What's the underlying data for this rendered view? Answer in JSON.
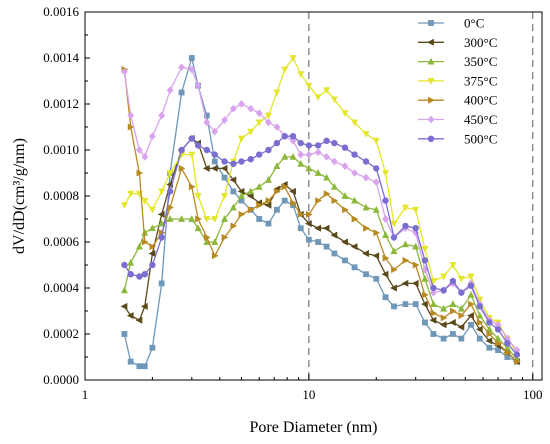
{
  "chart_data": {
    "type": "line",
    "xlabel": "Pore Diameter (nm)",
    "ylabel": "dV/dD(cm³/g/nm)",
    "xscale": "log",
    "xlim": [
      1,
      110
    ],
    "ylim": [
      0,
      0.0016
    ],
    "xticks": [
      1,
      10,
      100
    ],
    "xtick_labels": [
      "1",
      "10",
      "100"
    ],
    "yticks": [
      0,
      0.0002,
      0.0004,
      0.0006,
      0.0008,
      0.001,
      0.0012,
      0.0014,
      0.0016
    ],
    "ytick_labels": [
      "0.0000",
      "0.0002",
      "0.0004",
      "0.0006",
      "0.0008",
      "0.0010",
      "0.0012",
      "0.0014",
      "0.0016"
    ],
    "reference_lines_x": [
      10,
      100
    ],
    "legend_position": "top-right",
    "series": [
      {
        "name": "0°C",
        "color": "#6f97b8",
        "marker": "square",
        "x": [
          1.5,
          1.6,
          1.75,
          1.85,
          2.0,
          2.2,
          2.4,
          2.7,
          3.0,
          3.2,
          3.5,
          3.8,
          4.2,
          4.6,
          5.0,
          5.5,
          6.0,
          6.6,
          7.2,
          7.8,
          8.5,
          9.2,
          10,
          11,
          12,
          13,
          14.5,
          16,
          18,
          20,
          22,
          24,
          27,
          30,
          33,
          36,
          40,
          44,
          48,
          53,
          58,
          64,
          70,
          77,
          85
        ],
        "y": [
          0.0002,
          8e-05,
          6e-05,
          6e-05,
          0.00014,
          0.00042,
          0.0009,
          0.00125,
          0.0014,
          0.00128,
          0.00115,
          0.00095,
          0.00088,
          0.00082,
          0.00078,
          0.00074,
          0.0007,
          0.00068,
          0.00074,
          0.00078,
          0.00076,
          0.00066,
          0.00061,
          0.0006,
          0.00058,
          0.00055,
          0.00052,
          0.00049,
          0.00046,
          0.00044,
          0.00036,
          0.00032,
          0.00033,
          0.00033,
          0.00025,
          0.0002,
          0.00018,
          0.0002,
          0.00018,
          0.00024,
          0.00018,
          0.00014,
          0.00013,
          0.0001,
          8e-05
        ]
      },
      {
        "name": "300°C",
        "color": "#5a4a1a",
        "marker": "triangle-left",
        "x": [
          1.5,
          1.6,
          1.75,
          1.85,
          2.0,
          2.2,
          2.4,
          2.7,
          3.0,
          3.2,
          3.5,
          3.8,
          4.2,
          4.6,
          5.0,
          5.5,
          6.0,
          6.6,
          7.2,
          7.8,
          8.5,
          9.2,
          10,
          11,
          12,
          13,
          14.5,
          16,
          18,
          20,
          22,
          24,
          27,
          30,
          33,
          36,
          40,
          44,
          48,
          53,
          58,
          64,
          70,
          77,
          85
        ],
        "y": [
          0.00032,
          0.00028,
          0.00026,
          0.00032,
          0.00055,
          0.00072,
          0.00085,
          0.001,
          0.00105,
          0.00103,
          0.00092,
          0.00092,
          0.00092,
          0.00087,
          0.00082,
          0.0008,
          0.00077,
          0.00076,
          0.00083,
          0.00085,
          0.00082,
          0.00072,
          0.00068,
          0.00066,
          0.00066,
          0.00063,
          0.0006,
          0.00058,
          0.00055,
          0.00054,
          0.00046,
          0.0004,
          0.00042,
          0.00042,
          0.00033,
          0.00026,
          0.00024,
          0.00025,
          0.00023,
          0.00028,
          0.00022,
          0.00017,
          0.00015,
          0.00012,
          8e-05
        ]
      },
      {
        "name": "350°C",
        "color": "#8bb83a",
        "marker": "triangle-up",
        "x": [
          1.5,
          1.6,
          1.75,
          1.85,
          2.0,
          2.2,
          2.4,
          2.7,
          3.0,
          3.2,
          3.5,
          3.8,
          4.2,
          4.6,
          5.0,
          5.5,
          6.0,
          6.6,
          7.2,
          7.8,
          8.5,
          9.2,
          10,
          11,
          12,
          13,
          14.5,
          16,
          18,
          20,
          22,
          24,
          27,
          30,
          33,
          36,
          40,
          44,
          48,
          53,
          58,
          64,
          70,
          77,
          85
        ],
        "y": [
          0.00039,
          0.00051,
          0.00058,
          0.00064,
          0.00066,
          0.00068,
          0.0007,
          0.0007,
          0.0007,
          0.00066,
          0.0006,
          0.0006,
          0.0007,
          0.00075,
          0.0008,
          0.00082,
          0.00084,
          0.00087,
          0.00093,
          0.00097,
          0.00097,
          0.00094,
          0.00092,
          0.0009,
          0.00088,
          0.00084,
          0.0008,
          0.00078,
          0.00075,
          0.00074,
          0.00063,
          0.00056,
          0.00059,
          0.00058,
          0.00044,
          0.00033,
          0.00031,
          0.00033,
          0.00031,
          0.00037,
          0.00028,
          0.00022,
          0.00018,
          0.00014,
          9e-05
        ]
      },
      {
        "name": "375°C",
        "color": "#e3e62a",
        "marker": "triangle-down",
        "x": [
          1.5,
          1.6,
          1.75,
          1.85,
          2.0,
          2.2,
          2.4,
          2.7,
          3.0,
          3.2,
          3.5,
          3.8,
          4.2,
          4.6,
          5.0,
          5.5,
          6.0,
          6.6,
          7.2,
          7.8,
          8.5,
          9.2,
          10,
          11,
          12,
          13,
          14.5,
          16,
          18,
          20,
          22,
          24,
          27,
          30,
          33,
          36,
          40,
          44,
          48,
          53,
          58,
          64,
          70,
          77,
          85
        ],
        "y": [
          0.00076,
          0.00081,
          0.00081,
          0.00078,
          0.00074,
          0.00082,
          0.0009,
          0.00098,
          0.00098,
          0.0008,
          0.0007,
          0.0007,
          0.0008,
          0.00095,
          0.00105,
          0.00108,
          0.00112,
          0.00115,
          0.00125,
          0.00135,
          0.0014,
          0.00133,
          0.00128,
          0.00123,
          0.00126,
          0.00122,
          0.00116,
          0.00112,
          0.00107,
          0.00104,
          0.0009,
          0.00068,
          0.00075,
          0.00074,
          0.00057,
          0.00043,
          0.00045,
          0.0005,
          0.00044,
          0.00045,
          0.00035,
          0.00027,
          0.00025,
          0.00018,
          0.00012
        ]
      },
      {
        "name": "400°C",
        "color": "#b98a22",
        "marker": "triangle-right",
        "x": [
          1.5,
          1.6,
          1.75,
          1.85,
          2.0,
          2.2,
          2.4,
          2.7,
          3.0,
          3.2,
          3.5,
          3.8,
          4.2,
          4.6,
          5.0,
          5.5,
          6.0,
          6.6,
          7.2,
          7.8,
          8.5,
          9.2,
          10,
          11,
          12,
          13,
          14.5,
          16,
          18,
          20,
          22,
          24,
          27,
          30,
          33,
          36,
          40,
          44,
          48,
          53,
          58,
          64,
          70,
          77,
          85
        ],
        "y": [
          0.00135,
          0.0011,
          0.0009,
          0.0006,
          0.00058,
          0.00064,
          0.00075,
          0.00092,
          0.00084,
          0.0007,
          0.00062,
          0.00054,
          0.00062,
          0.00067,
          0.00072,
          0.00074,
          0.00076,
          0.00078,
          0.00082,
          0.00084,
          0.00077,
          0.00072,
          0.00072,
          0.00078,
          0.00081,
          0.00078,
          0.00074,
          0.0007,
          0.00066,
          0.00064,
          0.00053,
          0.00048,
          0.00052,
          0.0005,
          0.00037,
          0.00029,
          0.00027,
          0.0003,
          0.00028,
          0.00033,
          0.00025,
          0.0002,
          0.00016,
          0.00012,
          8e-05
        ]
      },
      {
        "name": "450°C",
        "color": "#d9a3ee",
        "marker": "diamond",
        "x": [
          1.5,
          1.6,
          1.75,
          1.85,
          2.0,
          2.2,
          2.4,
          2.7,
          3.0,
          3.2,
          3.5,
          3.8,
          4.2,
          4.6,
          5.0,
          5.5,
          6.0,
          6.6,
          7.2,
          7.8,
          8.5,
          9.2,
          10,
          11,
          12,
          13,
          14.5,
          16,
          18,
          20,
          22,
          24,
          27,
          30,
          33,
          36,
          40,
          44,
          48,
          53,
          58,
          64,
          70,
          77,
          85
        ],
        "y": [
          0.00134,
          0.00115,
          0.001,
          0.00097,
          0.00106,
          0.00115,
          0.00126,
          0.00136,
          0.00135,
          0.00128,
          0.00112,
          0.00108,
          0.00113,
          0.00118,
          0.0012,
          0.00118,
          0.00116,
          0.00112,
          0.0011,
          0.00106,
          0.00104,
          0.00098,
          0.00098,
          0.00099,
          0.00097,
          0.00095,
          0.00093,
          0.0009,
          0.00088,
          0.00086,
          0.0007,
          0.00062,
          0.00066,
          0.00064,
          0.00048,
          0.00038,
          0.00039,
          0.00042,
          0.00038,
          0.00042,
          0.00033,
          0.00026,
          0.00024,
          0.00018,
          0.00013
        ]
      },
      {
        "name": "500°C",
        "color": "#7a6fd0",
        "marker": "circle",
        "x": [
          1.5,
          1.6,
          1.75,
          1.85,
          2.0,
          2.2,
          2.4,
          2.7,
          3.0,
          3.2,
          3.5,
          3.8,
          4.2,
          4.6,
          5.0,
          5.5,
          6.0,
          6.6,
          7.2,
          7.8,
          8.5,
          9.2,
          10,
          11,
          12,
          13,
          14.5,
          16,
          18,
          20,
          22,
          24,
          27,
          30,
          33,
          36,
          40,
          44,
          48,
          53,
          58,
          64,
          70,
          77,
          85
        ],
        "y": [
          0.0005,
          0.00046,
          0.00045,
          0.00046,
          0.0005,
          0.00062,
          0.00082,
          0.001,
          0.00105,
          0.00102,
          0.001,
          0.00098,
          0.00095,
          0.00094,
          0.00095,
          0.00096,
          0.00098,
          0.001,
          0.00103,
          0.00106,
          0.00106,
          0.00103,
          0.00102,
          0.00102,
          0.00104,
          0.00103,
          0.00101,
          0.00098,
          0.00095,
          0.00092,
          0.00078,
          0.00062,
          0.00067,
          0.00066,
          0.00052,
          0.0004,
          0.00039,
          0.00043,
          0.00038,
          0.00041,
          0.00032,
          0.00025,
          0.00022,
          0.00016,
          0.00011
        ]
      }
    ]
  }
}
